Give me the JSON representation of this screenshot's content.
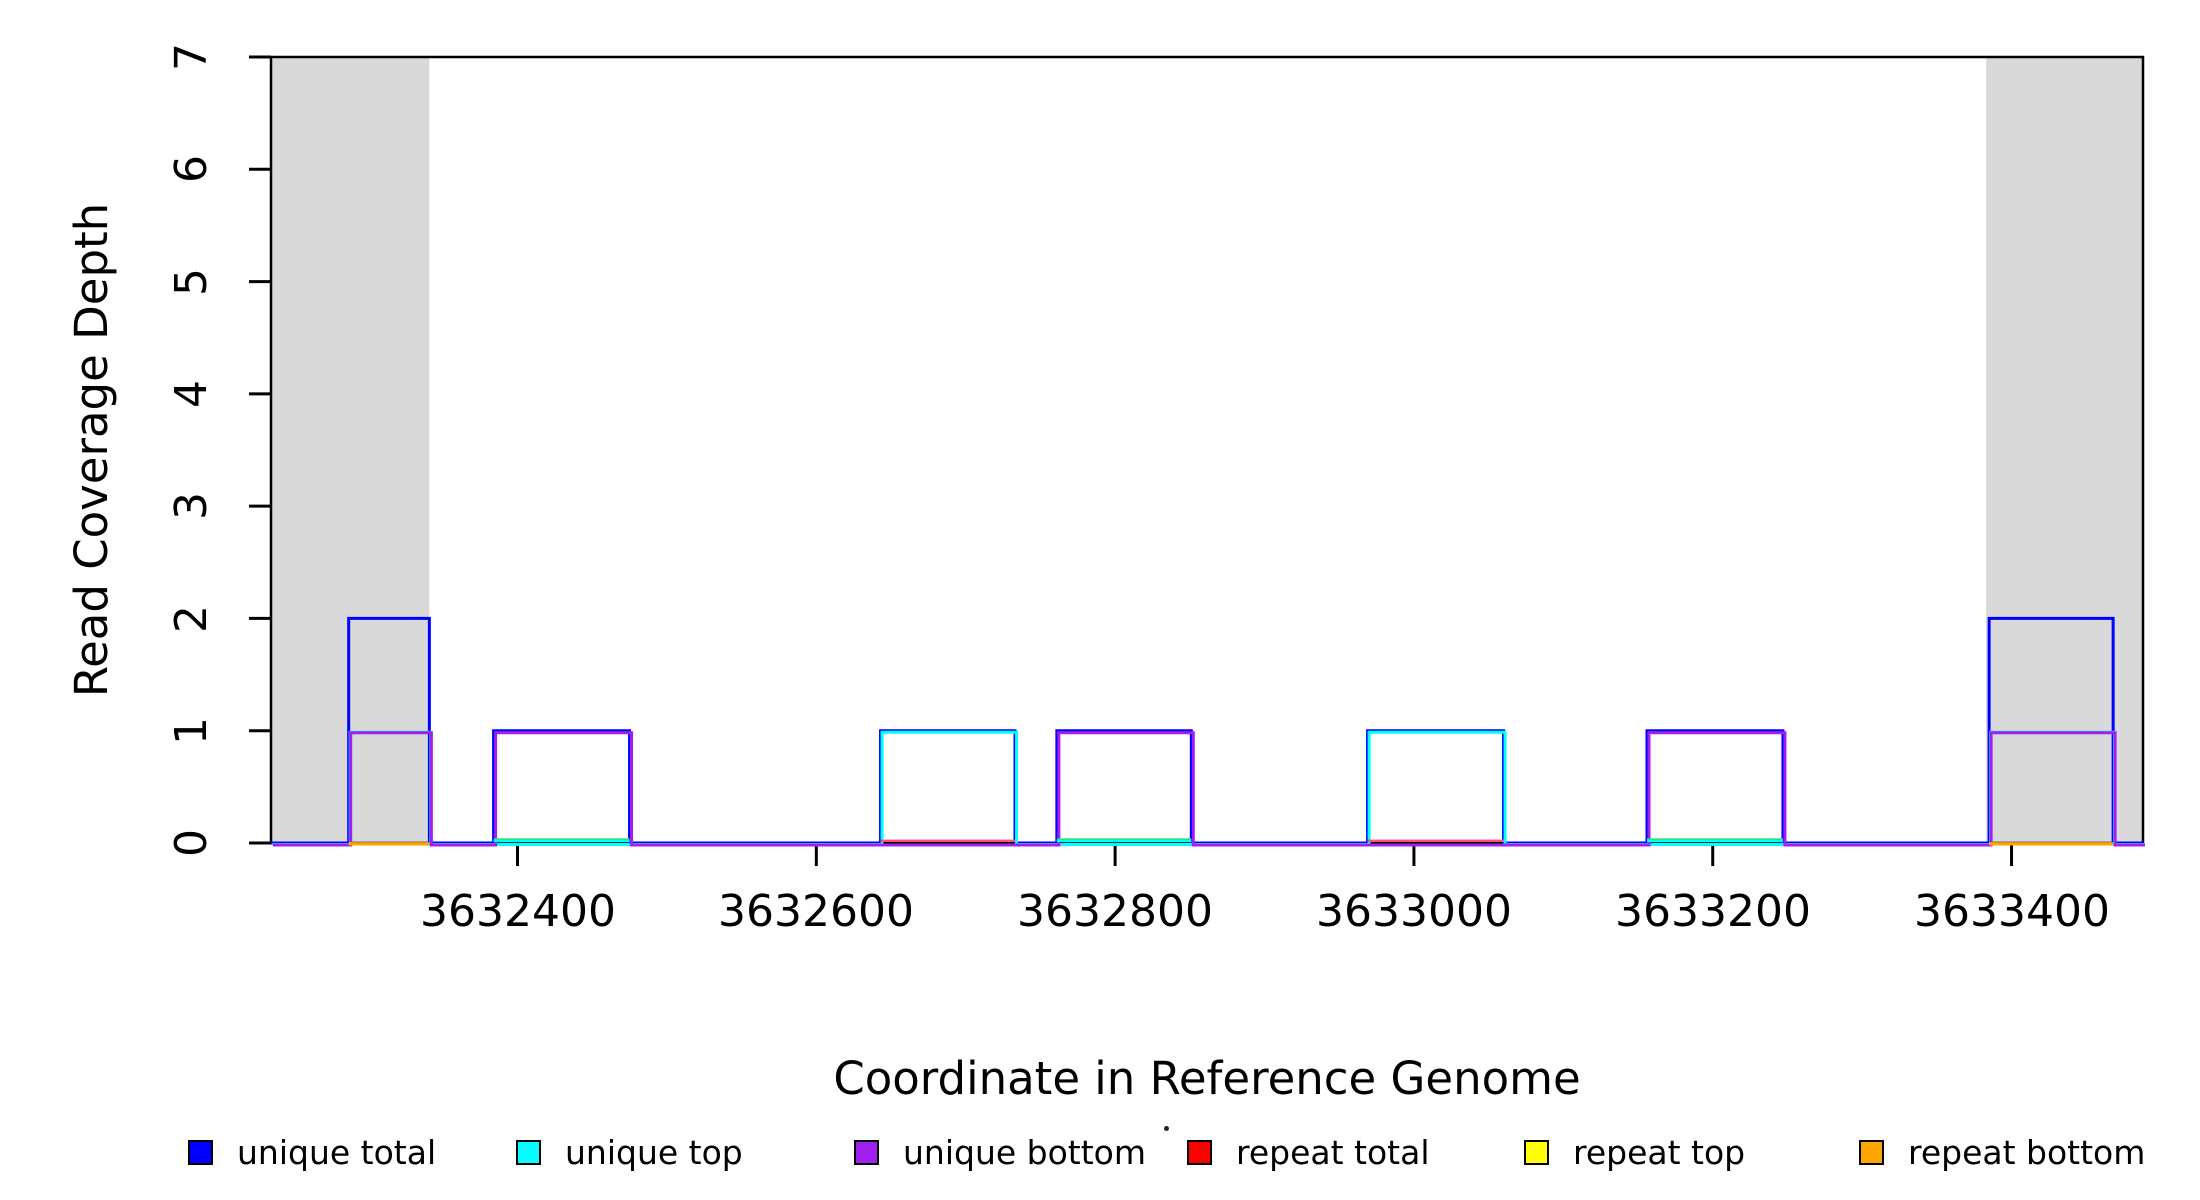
{
  "figure": {
    "background": "#FFFFFF",
    "text_color": "#000000"
  },
  "y_axis": {
    "label": "Read Coverage Depth",
    "tick_labels": [
      "0",
      "1",
      "2",
      "3",
      "4",
      "5",
      "6",
      "7"
    ],
    "tick_values": [
      0,
      1,
      2,
      3,
      4,
      5,
      6,
      7
    ],
    "range": [
      0,
      7
    ]
  },
  "x_axis": {
    "label": "Coordinate in Reference Genome",
    "tick_labels": [
      "3632400",
      "3632600",
      "3632800",
      "3633000",
      "3633200",
      "3633400"
    ],
    "tick_values": [
      3632400,
      3632600,
      3632800,
      3633000,
      3633200,
      3633400
    ],
    "range": [
      3632235,
      3633488
    ]
  },
  "legend": {
    "items": [
      {
        "label": "unique total",
        "color": "#0000FF"
      },
      {
        "label": "unique top",
        "color": "#00FFFF"
      },
      {
        "label": "unique bottom",
        "color": "#A020F0"
      },
      {
        "label": "repeat total",
        "color": "#FF0000"
      },
      {
        "label": "repeat top",
        "color": "#FFFF00"
      },
      {
        "label": "repeat bottom",
        "color": "#FFA500"
      }
    ]
  },
  "chart_data": {
    "type": "line",
    "step": true,
    "title": "",
    "xlabel": "Coordinate in Reference Genome",
    "ylabel": "Read Coverage Depth",
    "xlim": [
      3632235,
      3633488
    ],
    "ylim": [
      0,
      7
    ],
    "grid": false,
    "legend_position": "bottom",
    "shaded_regions": {
      "color": "#D9D9D9",
      "intervals": [
        [
          3632235,
          3632341
        ],
        [
          3633383,
          3633488
        ]
      ]
    },
    "series": [
      {
        "name": "unique total",
        "color": "#0000FF",
        "segments": [
          {
            "start": 3632287,
            "end": 3632341,
            "depth": 2
          },
          {
            "start": 3632384,
            "end": 3632475,
            "depth": 1
          },
          {
            "start": 3632643,
            "end": 3632733,
            "depth": 1
          },
          {
            "start": 3632761,
            "end": 3632851,
            "depth": 1
          },
          {
            "start": 3632969,
            "end": 3633060,
            "depth": 1
          },
          {
            "start": 3633156,
            "end": 3633247,
            "depth": 1
          },
          {
            "start": 3633385,
            "end": 3633468,
            "depth": 2
          }
        ]
      },
      {
        "name": "unique top",
        "color": "#00FFFF",
        "segments": [
          {
            "start": 3632287,
            "end": 3632341,
            "depth": 1
          },
          {
            "start": 3632643,
            "end": 3632733,
            "depth": 1
          },
          {
            "start": 3632969,
            "end": 3633060,
            "depth": 1
          },
          {
            "start": 3633385,
            "end": 3633468,
            "depth": 1
          }
        ]
      },
      {
        "name": "unique bottom",
        "color": "#A020F0",
        "segments": [
          {
            "start": 3632287,
            "end": 3632341,
            "depth": 1
          },
          {
            "start": 3632384,
            "end": 3632475,
            "depth": 1
          },
          {
            "start": 3632761,
            "end": 3632851,
            "depth": 1
          },
          {
            "start": 3633156,
            "end": 3633247,
            "depth": 1
          },
          {
            "start": 3633385,
            "end": 3633468,
            "depth": 1
          }
        ]
      },
      {
        "name": "repeat total",
        "color": "#FF0000",
        "segments": []
      },
      {
        "name": "repeat top",
        "color": "#FFFF00",
        "segments": []
      },
      {
        "name": "repeat bottom",
        "color": "#FFA500",
        "segments": []
      }
    ],
    "baseline_overlays": [
      {
        "name": "under-unique-bottom-boxes",
        "intervals": [
          [
            3632384,
            3632475
          ],
          [
            3632761,
            3632851
          ],
          [
            3633156,
            3633247
          ]
        ],
        "lines": [
          {
            "color": "#2EE08C",
            "dy": -3.6,
            "w": 2.2
          },
          {
            "color": "#00FFFF",
            "dy": -1.8,
            "w": 2.2
          }
        ]
      },
      {
        "name": "under-unique-top-boxes",
        "intervals": [
          [
            3632643,
            3632733
          ],
          [
            3632969,
            3633060
          ]
        ],
        "lines": [
          {
            "color": "#FF4E78",
            "dy": -2.2,
            "w": 2.4
          }
        ]
      },
      {
        "name": "under-unique-total-boxes",
        "intervals": [
          [
            3632287,
            3632341
          ],
          [
            3633385,
            3633468
          ]
        ],
        "lines": [
          {
            "color": "#FFA500",
            "dy": 0.8,
            "w": 3.4
          }
        ]
      }
    ]
  }
}
